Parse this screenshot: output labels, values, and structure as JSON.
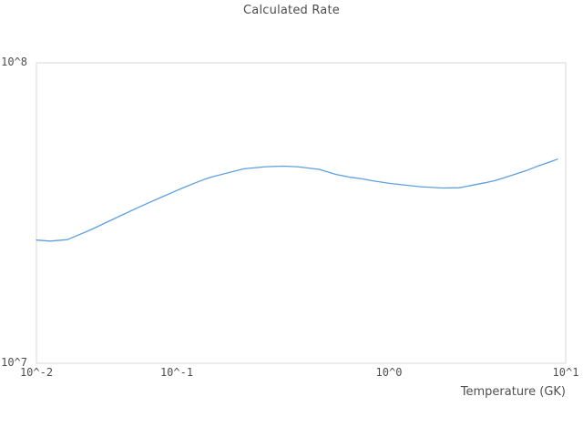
{
  "title": "Calculated Rate",
  "chart_data": {
    "type": "line",
    "title": "Calculated Rate",
    "xlabel": "Temperature (GK)",
    "ylabel": "",
    "x_scale": "log",
    "y_scale": "log",
    "xlim": [
      0.01,
      10
    ],
    "ylim": [
      10000000.0,
      100000000.0
    ],
    "grid": false,
    "legend_position": "none",
    "x_tick_labels": [
      "10^-2",
      "10^-1",
      "10^0",
      "10^1"
    ],
    "y_tick_labels": [
      "10^7",
      "10^8"
    ],
    "series": [
      {
        "name": "Calculated Rate",
        "color": "#5e9fe0",
        "x": [
          0.01,
          0.012,
          0.015,
          0.02,
          0.03,
          0.04,
          0.05,
          0.06,
          0.07,
          0.08,
          0.09,
          0.1,
          0.15,
          0.2,
          0.25,
          0.3,
          0.4,
          0.5,
          0.6,
          0.7,
          0.8,
          0.9,
          1.0,
          1.5,
          2.0,
          2.5,
          3.0,
          3.5,
          4.0,
          5.0,
          6.0,
          7.0,
          8.0,
          9.0
        ],
        "y": [
          25700000.0,
          25500000.0,
          25800000.0,
          27700000.0,
          31000000.0,
          33500000.0,
          35500000.0,
          37200000.0,
          38700000.0,
          39900000.0,
          41000000.0,
          41800000.0,
          44400000.0,
          45100000.0,
          45300000.0,
          45100000.0,
          44200000.0,
          42500000.0,
          41600000.0,
          41100000.0,
          40500000.0,
          40100000.0,
          39700000.0,
          38700000.0,
          38300000.0,
          38400000.0,
          39200000.0,
          39900000.0,
          40600000.0,
          42300000.0,
          43800000.0,
          45400000.0,
          46600000.0,
          47800000.0
        ]
      }
    ]
  },
  "colors": {
    "line": "#5e9fe0",
    "frame": "#d9d9d9",
    "title_text": "#4c4c4c",
    "tick_text": "#4f4f4f",
    "background": "#ffffff"
  }
}
